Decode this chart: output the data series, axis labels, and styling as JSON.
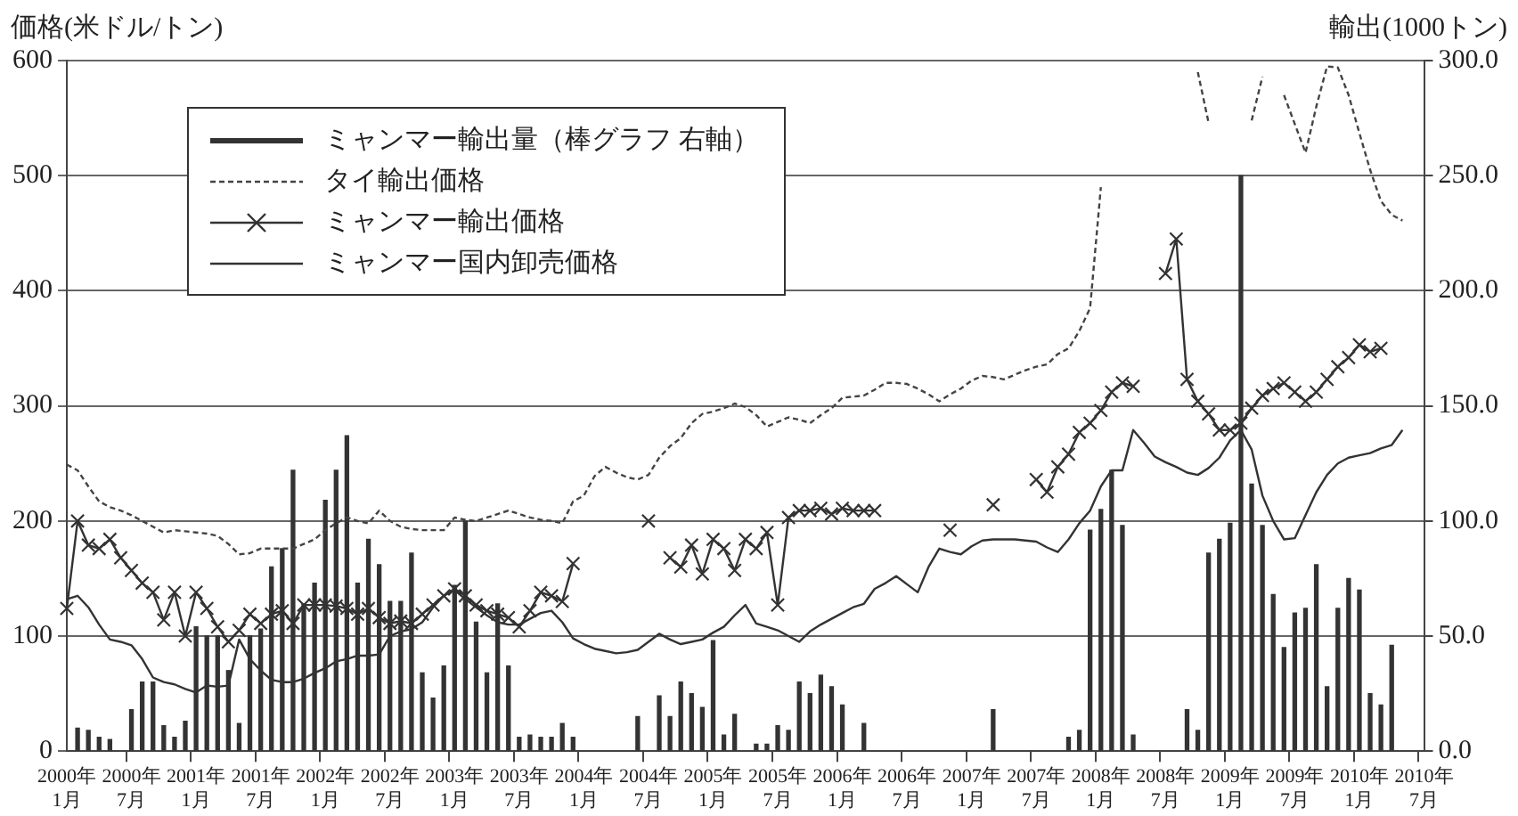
{
  "chart_data": {
    "type": "line",
    "ylabel": "価格(米ドル/トン)",
    "y2label": "輸出(1000トン)",
    "categories": [
      "2000年\n1月",
      null,
      null,
      null,
      null,
      null,
      "2000年\n7月",
      null,
      null,
      null,
      null,
      null,
      "2001年\n1月",
      null,
      null,
      null,
      null,
      null,
      "2001年\n7月",
      null,
      null,
      null,
      null,
      null,
      "2002年\n1月",
      null,
      null,
      null,
      null,
      null,
      "2002年\n7月",
      null,
      null,
      null,
      null,
      null,
      "2003年\n1月",
      null,
      null,
      null,
      null,
      null,
      "2003年\n7月",
      null,
      null,
      null,
      null,
      null,
      "2004年\n1月",
      null,
      null,
      null,
      null,
      null,
      "2004年\n7月",
      null,
      null,
      null,
      null,
      null,
      "2005年\n1月",
      null,
      null,
      null,
      null,
      null,
      "2005年\n7月",
      null,
      null,
      null,
      null,
      null,
      "2006年\n1月",
      null,
      null,
      null,
      null,
      null,
      "2006年\n7月",
      null,
      null,
      null,
      null,
      null,
      "2007年\n1月",
      null,
      null,
      null,
      null,
      null,
      "2007年\n7月",
      null,
      null,
      null,
      null,
      null,
      "2008年\n1月",
      null,
      null,
      null,
      null,
      null,
      "2008年\n7月",
      null,
      null,
      null,
      null,
      null,
      "2009年\n1月",
      null,
      null,
      null,
      null,
      null,
      "2009年\n7月",
      null,
      null,
      null,
      null,
      null,
      "2010年\n1月",
      null,
      null,
      null,
      null,
      null,
      "2010年\n7月"
    ],
    "series": [
      {
        "name": "ミャンマー輸出量（棒グラフ 右軸）",
        "type": "bar",
        "axis": "y2",
        "color": "#333333",
        "values": [
          null,
          10,
          9,
          6,
          5,
          null,
          18,
          30,
          30,
          11,
          6,
          13,
          54,
          50,
          50,
          35,
          12,
          50,
          53,
          80,
          88,
          122,
          64,
          73,
          109,
          122,
          137,
          73,
          92,
          81,
          65,
          65,
          86,
          34,
          23,
          37,
          72,
          100,
          56,
          34,
          64,
          37,
          6,
          7,
          6,
          6,
          12,
          6,
          null,
          null,
          null,
          null,
          null,
          15,
          null,
          24,
          15,
          30,
          25,
          19,
          48,
          7,
          16,
          null,
          3,
          3,
          11,
          9,
          30,
          25,
          33,
          28,
          20,
          null,
          12,
          null,
          null,
          null,
          null,
          null,
          null,
          null,
          null,
          null,
          null,
          null,
          18,
          null,
          null,
          null,
          null,
          null,
          null,
          6,
          9,
          96,
          105,
          122,
          98,
          7,
          null,
          null,
          null,
          null,
          18,
          9,
          86,
          92,
          99,
          250,
          116,
          98,
          68,
          45,
          60,
          62,
          81,
          28,
          62,
          75,
          70,
          25,
          20,
          46,
          null,
          null,
          null
        ]
      },
      {
        "name": "タイ輸出価格",
        "line_style": "dashed",
        "color": "#444444",
        "values": [
          249,
          244,
          230,
          217,
          212,
          209,
          205,
          200,
          195,
          190,
          192,
          191,
          190,
          189,
          187,
          180,
          171,
          172,
          176,
          176,
          176,
          176,
          180,
          184,
          192,
          198,
          203,
          200,
          198,
          209,
          200,
          195,
          193,
          192,
          192,
          192,
          203,
          201,
          200,
          203,
          206,
          209,
          206,
          203,
          201,
          200,
          198,
          217,
          222,
          239,
          247,
          242,
          238,
          236,
          240,
          255,
          265,
          272,
          285,
          293,
          295,
          298,
          302,
          299,
          292,
          282,
          286,
          290,
          288,
          285,
          292,
          298,
          307,
          308,
          309,
          314,
          320,
          320,
          319,
          315,
          310,
          304,
          310,
          315,
          322,
          326,
          325,
          323,
          327,
          331,
          334,
          336,
          345,
          350,
          365,
          385,
          490,
          null,
          null,
          null,
          null,
          null,
          null,
          null,
          null,
          590,
          546,
          null,
          null,
          null,
          548,
          586,
          null,
          570,
          545,
          520,
          560,
          595,
          594,
          570,
          537,
          505,
          478,
          466,
          461,
          null,
          null
        ]
      },
      {
        "name": "ミャンマー輸出価格",
        "marker": "cross",
        "color": "#333333",
        "values": [
          124,
          200,
          179,
          176,
          184,
          168,
          157,
          146,
          138,
          114,
          138,
          100,
          138,
          124,
          108,
          95,
          105,
          119,
          111,
          119,
          122,
          111,
          127,
          127,
          127,
          126,
          124,
          119,
          124,
          116,
          111,
          113,
          111,
          119,
          127,
          135,
          141,
          135,
          127,
          122,
          119,
          116,
          108,
          122,
          138,
          135,
          130,
          163,
          null,
          null,
          null,
          null,
          null,
          null,
          200,
          null,
          168,
          160,
          179,
          154,
          184,
          176,
          157,
          184,
          176,
          190,
          127,
          203,
          209,
          209,
          211,
          206,
          211,
          209,
          209,
          209,
          null,
          null,
          null,
          null,
          null,
          null,
          192,
          null,
          null,
          null,
          214,
          null,
          null,
          null,
          236,
          225,
          247,
          258,
          277,
          285,
          296,
          312,
          320,
          317,
          null,
          null,
          415,
          445,
          323,
          304,
          293,
          279,
          279,
          285,
          298,
          309,
          315,
          320,
          312,
          304,
          312,
          323,
          334,
          342,
          353,
          347,
          350,
          null,
          null,
          null,
          null
        ]
      },
      {
        "name": "ミャンマー国内卸売価格",
        "color": "#333333",
        "values": [
          132,
          135,
          125,
          110,
          97,
          95,
          92,
          80,
          64,
          60,
          58,
          54,
          51,
          57,
          56,
          57,
          97,
          80,
          70,
          62,
          60,
          60,
          63,
          68,
          72,
          78,
          80,
          83,
          83,
          84,
          100,
          104,
          106,
          112,
          125,
          135,
          140,
          132,
          125,
          118,
          112,
          110,
          110,
          115,
          120,
          122,
          112,
          98,
          93,
          89,
          87,
          85,
          86,
          88,
          95,
          102,
          97,
          93,
          95,
          97,
          103,
          108,
          118,
          127,
          111,
          108,
          105,
          100,
          95,
          104,
          110,
          115,
          120,
          125,
          128,
          141,
          146,
          152,
          145,
          138,
          160,
          176,
          173,
          171,
          178,
          183,
          184,
          184,
          184,
          183,
          182,
          177,
          173,
          184,
          198,
          209,
          230,
          244,
          244,
          279,
          268,
          256,
          251,
          247,
          242,
          240,
          246,
          255,
          270,
          279,
          262,
          222,
          200,
          184,
          185,
          205,
          225,
          240,
          250,
          255,
          257,
          259,
          263,
          266,
          279,
          null,
          null
        ]
      }
    ],
    "ylim": [
      0,
      600
    ],
    "yticks": [
      0,
      100,
      200,
      300,
      400,
      500,
      600
    ],
    "y2lim": [
      0,
      300
    ],
    "y2ticks": [
      {
        "value": 0,
        "label": "0.0"
      },
      {
        "value": 50,
        "label": "50.0"
      },
      {
        "value": 100,
        "label": "100.0"
      },
      {
        "value": 150,
        "label": "150.0"
      },
      {
        "value": 200,
        "label": "200.0"
      },
      {
        "value": 250,
        "label": "250.0"
      },
      {
        "value": 300,
        "label": "300.0"
      }
    ],
    "grid": "y",
    "legend": "top left"
  }
}
